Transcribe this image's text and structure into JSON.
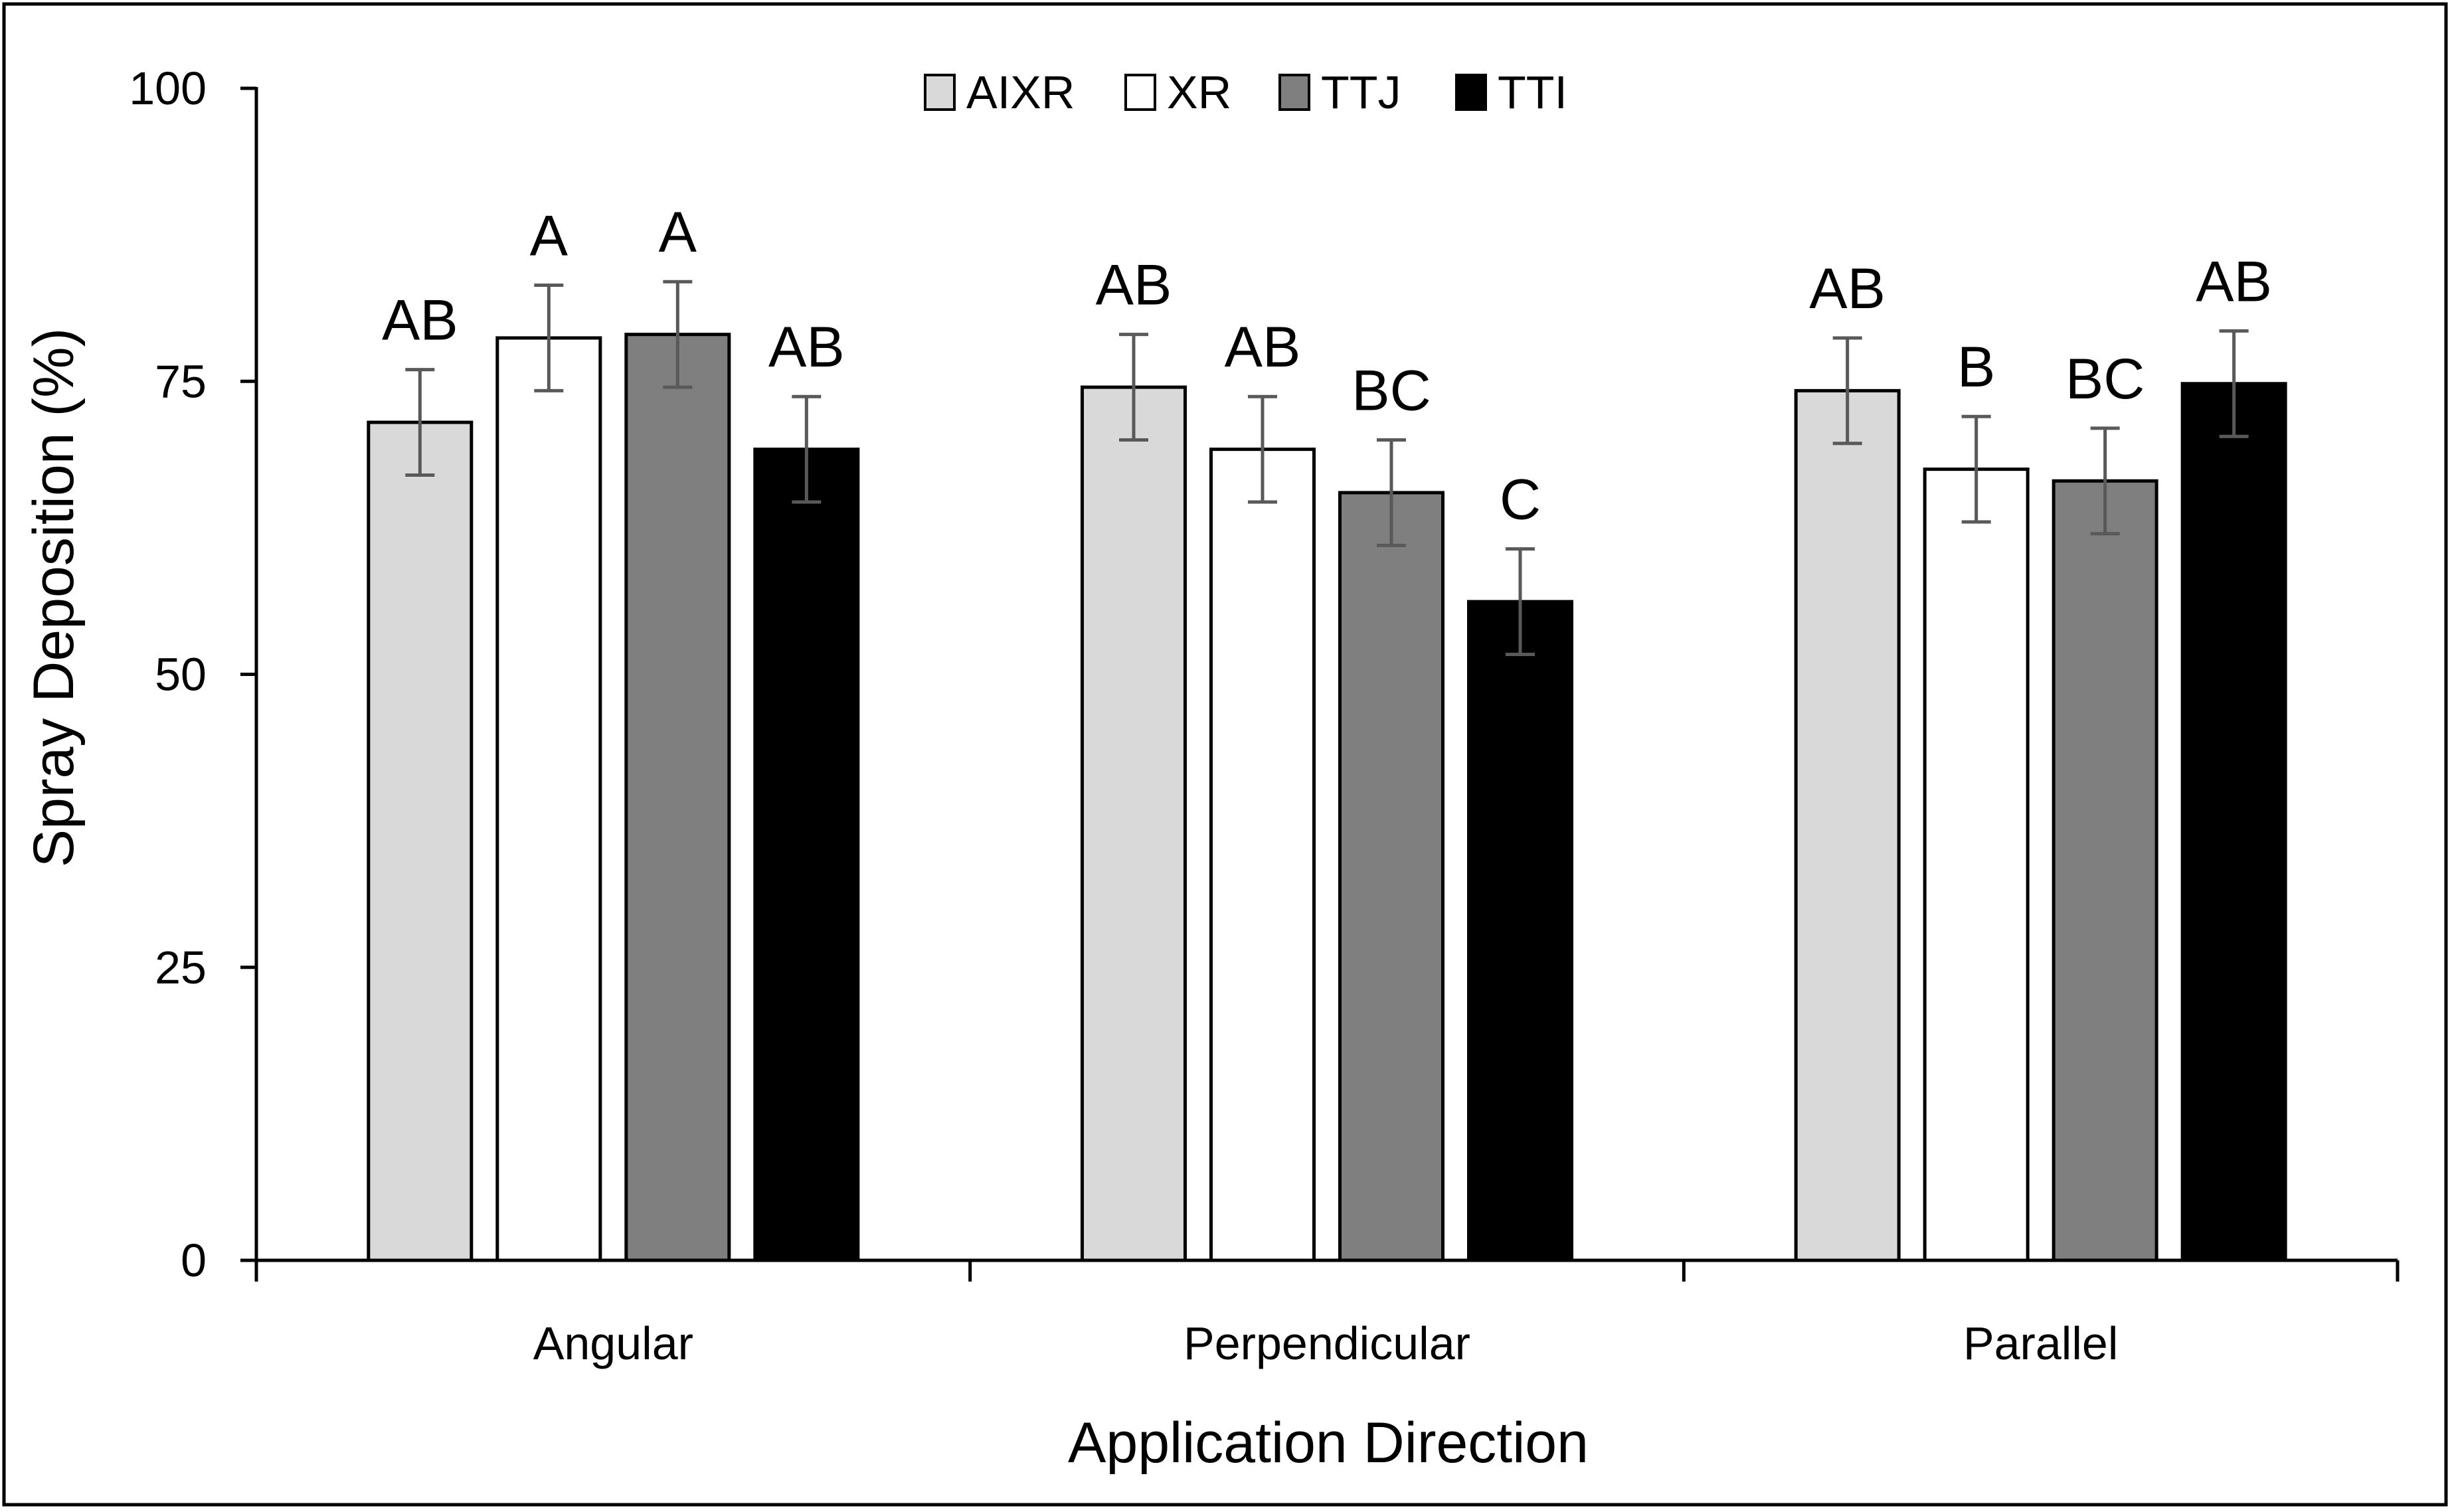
{
  "chart_data": {
    "type": "bar",
    "title": "",
    "xlabel": "Application Direction",
    "ylabel": "Spray Deposition (%)",
    "ylim": [
      0,
      100
    ],
    "yticks": [
      "0",
      "25",
      "50",
      "75",
      "100"
    ],
    "grid": false,
    "legend_position": "top-center",
    "categories": [
      "Angular",
      "Perpendicular",
      "Parallel"
    ],
    "series": [
      {
        "name": "AIXR",
        "color": "#d9d9d9",
        "values": [
          71.5,
          74.5,
          74.2
        ],
        "errors": [
          4.5,
          4.5,
          4.5
        ],
        "letters": [
          "AB",
          "AB",
          "AB"
        ]
      },
      {
        "name": "XR",
        "color": "#ffffff",
        "values": [
          78.7,
          69.2,
          67.5
        ],
        "errors": [
          4.5,
          4.5,
          4.5
        ],
        "letters": [
          "A",
          "AB",
          "B"
        ]
      },
      {
        "name": "TTJ",
        "color": "#7f7f7f",
        "values": [
          79.0,
          65.5,
          66.5
        ],
        "errors": [
          4.5,
          4.5,
          4.5
        ],
        "letters": [
          "A",
          "BC",
          "BC"
        ]
      },
      {
        "name": "TTI",
        "color": "#000000",
        "values": [
          69.2,
          56.2,
          74.8
        ],
        "errors": [
          4.5,
          4.5,
          4.5
        ],
        "letters": [
          "AB",
          "C",
          "AB"
        ]
      }
    ]
  }
}
